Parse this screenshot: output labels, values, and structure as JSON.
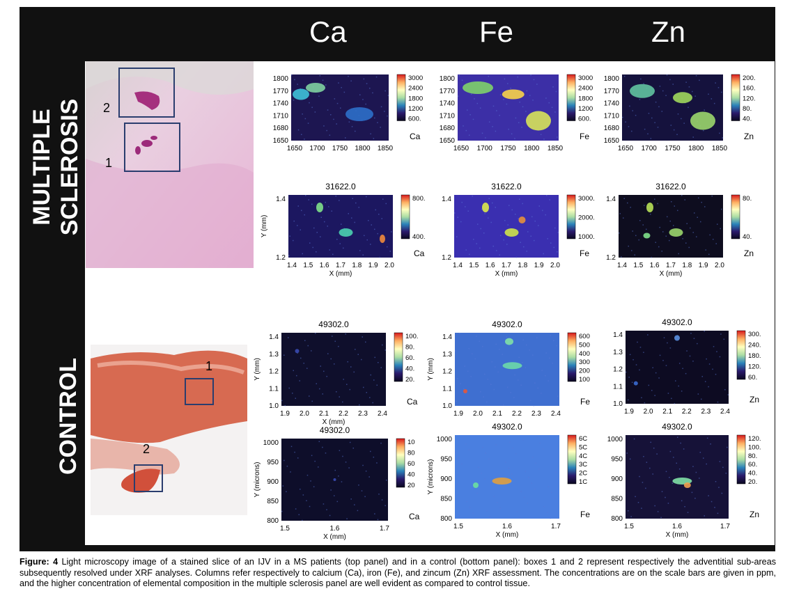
{
  "columns": [
    "Ca",
    "Fe",
    "Zn"
  ],
  "row_labels": {
    "ms_line1": "MULTIPLE",
    "ms_line2": "SCLEROSIS",
    "control": "CONTROL"
  },
  "box_labels": {
    "ms_box2": "2",
    "ms_box1": "1",
    "ctrl_box1": "1",
    "ctrl_box2": "2"
  },
  "caption": {
    "label": "Figure: 4",
    "text": " Light microscopy image of a stained slice of an IJV in a MS patients (top panel) and in a control (bottom panel): boxes 1 and 2 represent respectively the adventitial sub-areas subsequently resolved under XRF analyses. Columns refer respectively to calcium (Ca), iron (Fe), and zincum (Zn) XRF assessment. The concentrations are on the scale bars are given in ppm, and the higher concentration of elemental composition in the multiple sclerosis panel are well evident as compared to control tissue."
  },
  "chart_data": [
    {
      "type": "heatmap",
      "element": "Ca",
      "row": "ms-top",
      "title": "",
      "xticks": [
        "1650",
        "1700",
        "1750",
        "1800",
        "1850"
      ],
      "yticks": [
        "1800",
        "1770",
        "1740",
        "1710",
        "1680",
        "1650"
      ],
      "cbar": [
        "3000",
        "2400",
        "1800",
        "1200",
        "600."
      ],
      "xlabel": "",
      "ylabel": ""
    },
    {
      "type": "heatmap",
      "element": "Fe",
      "row": "ms-top",
      "title": "",
      "xticks": [
        "1650",
        "1700",
        "1750",
        "1800",
        "1850"
      ],
      "yticks": [
        "1800",
        "1770",
        "1740",
        "1710",
        "1680",
        "1650"
      ],
      "cbar": [
        "3000",
        "2400",
        "1800",
        "1200",
        "600."
      ],
      "xlabel": "",
      "ylabel": ""
    },
    {
      "type": "heatmap",
      "element": "Zn",
      "row": "ms-top",
      "title": "",
      "xticks": [
        "1650",
        "1700",
        "1750",
        "1800",
        "1850"
      ],
      "yticks": [
        "1800",
        "1770",
        "1740",
        "1710",
        "1680",
        "1650"
      ],
      "cbar": [
        "200.",
        "160.",
        "120.",
        "80.",
        "40."
      ],
      "xlabel": "",
      "ylabel": ""
    },
    {
      "type": "heatmap",
      "element": "Ca",
      "row": "ms-bottom",
      "title": "31622.0",
      "xticks": [
        "1.4",
        "1.5",
        "1.6",
        "1.7",
        "1.8",
        "1.9",
        "2.0"
      ],
      "yticks": [
        "1.4",
        "1.2"
      ],
      "cbar": [
        "800.",
        "400."
      ],
      "xlabel": "X (mm)",
      "ylabel": "Y (mm)"
    },
    {
      "type": "heatmap",
      "element": "Fe",
      "row": "ms-bottom",
      "title": "31622.0",
      "xticks": [
        "1.4",
        "1.5",
        "1.6",
        "1.7",
        "1.8",
        "1.9",
        "2.0"
      ],
      "yticks": [
        "1.4",
        "1.2"
      ],
      "cbar": [
        "3000.",
        "2000.",
        "1000."
      ],
      "xlabel": "X (mm)",
      "ylabel": ""
    },
    {
      "type": "heatmap",
      "element": "Zn",
      "row": "ms-bottom",
      "title": "31622.0",
      "xticks": [
        "1.4",
        "1.5",
        "1.6",
        "1.7",
        "1.8",
        "1.9",
        "2.0"
      ],
      "yticks": [
        "1.4",
        "1.2"
      ],
      "cbar": [
        "80.",
        "40."
      ],
      "xlabel": "X (mm)",
      "ylabel": ""
    },
    {
      "type": "heatmap",
      "element": "Ca",
      "row": "ctrl-top",
      "title": "49302.0",
      "xticks": [
        "1.9",
        "2.0",
        "2.1",
        "2.2",
        "2.3",
        "2.4"
      ],
      "yticks": [
        "1.4",
        "1.3",
        "1.2",
        "1.1",
        "1.0"
      ],
      "cbar": [
        "100.",
        "80.",
        "60.",
        "40.",
        "20."
      ],
      "xlabel": "X (mm)",
      "ylabel": "Y (mm)"
    },
    {
      "type": "heatmap",
      "element": "Fe",
      "row": "ctrl-top",
      "title": "49302.0",
      "xticks": [
        "1.9",
        "2.0",
        "2.1",
        "2.2",
        "2.3",
        "2.4"
      ],
      "yticks": [
        "1.4",
        "1.3",
        "1.2",
        "1.1",
        "1.0"
      ],
      "cbar": [
        "600",
        "500",
        "400",
        "300",
        "200",
        "100"
      ],
      "xlabel": "",
      "ylabel": "Y (mm)"
    },
    {
      "type": "heatmap",
      "element": "Zn",
      "row": "ctrl-top",
      "title": "49302.0",
      "xticks": [
        "1.9",
        "2.0",
        "2.1",
        "2.2",
        "2.3",
        "2.4"
      ],
      "yticks": [
        "1.4",
        "1.3",
        "1.2",
        "1.1",
        "1.0"
      ],
      "cbar": [
        "300.",
        "240.",
        "180.",
        "120.",
        "60."
      ],
      "xlabel": "",
      "ylabel": ""
    },
    {
      "type": "heatmap",
      "element": "Ca",
      "row": "ctrl-bottom",
      "title": "49302.0",
      "xticks": [
        "1.5",
        "1.6",
        "1.7"
      ],
      "yticks": [
        "1000",
        "950",
        "900",
        "850",
        "800"
      ],
      "cbar": [
        "10",
        "80",
        "60",
        "40",
        "20"
      ],
      "xlabel": "X (mm)",
      "ylabel": "Y (microns)"
    },
    {
      "type": "heatmap",
      "element": "Fe",
      "row": "ctrl-bottom",
      "title": "49302.0",
      "xticks": [
        "1.5",
        "1.6",
        "1.7"
      ],
      "yticks": [
        "1000",
        "950",
        "900",
        "850",
        "800"
      ],
      "cbar": [
        "6C",
        "5C",
        "4C",
        "3C",
        "2C",
        "1C"
      ],
      "xlabel": "X (mm)",
      "ylabel": "Y (microns)"
    },
    {
      "type": "heatmap",
      "element": "Zn",
      "row": "ctrl-bottom",
      "title": "49302.0",
      "xticks": [
        "1.5",
        "1.6",
        "1.7"
      ],
      "yticks": [
        "1000",
        "950",
        "900",
        "850",
        "800"
      ],
      "cbar": [
        "120.",
        "100.",
        "80.",
        "60.",
        "40.",
        "20."
      ],
      "xlabel": "X (mm)",
      "ylabel": ""
    }
  ],
  "colors": {
    "frame": "#111111",
    "stain_ms": "#e4b9d6",
    "stain_ctrl": "#d8644a",
    "box": "#2a3d6e"
  }
}
